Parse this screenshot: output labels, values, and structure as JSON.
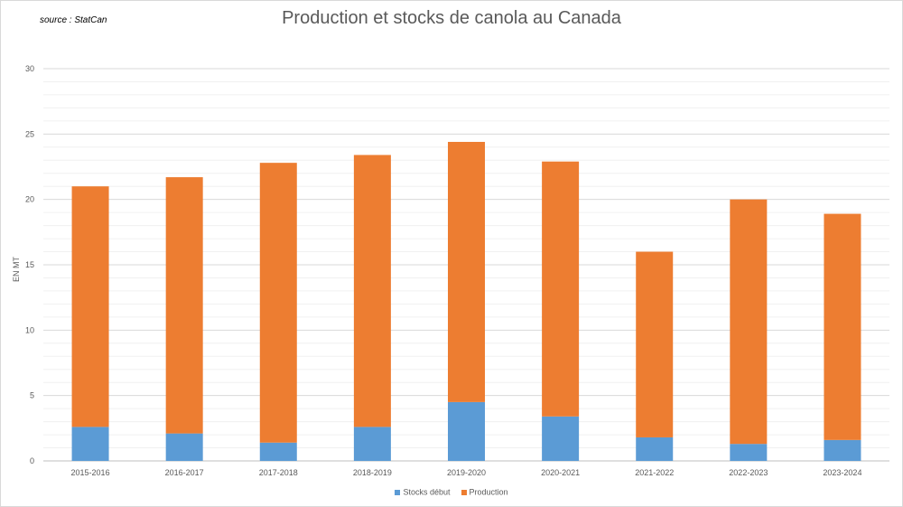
{
  "source_note": "source : StatCan",
  "chart_data": {
    "type": "bar",
    "stacked": true,
    "title": "Production et stocks de canola au Canada",
    "xlabel": "",
    "ylabel": "EN MT",
    "ylim": [
      0,
      30
    ],
    "yticks": [
      0,
      5,
      10,
      15,
      20,
      25,
      30
    ],
    "grid": true,
    "legend_position": "bottom",
    "categories": [
      "2015-2016",
      "2016-2017",
      "2017-2018",
      "2018-2019",
      "2019-2020",
      "2020-2021",
      "2021-2022",
      "2022-2023",
      "2023-2024"
    ],
    "series": [
      {
        "name": "Stocks début",
        "color": "#5b9bd5",
        "values": [
          2.6,
          2.1,
          1.4,
          2.6,
          4.5,
          3.4,
          1.8,
          1.3,
          1.6
        ]
      },
      {
        "name": "Production",
        "color": "#ed7d31",
        "values": [
          18.4,
          19.6,
          21.4,
          20.8,
          19.9,
          19.5,
          14.2,
          18.7,
          17.3
        ]
      }
    ]
  }
}
